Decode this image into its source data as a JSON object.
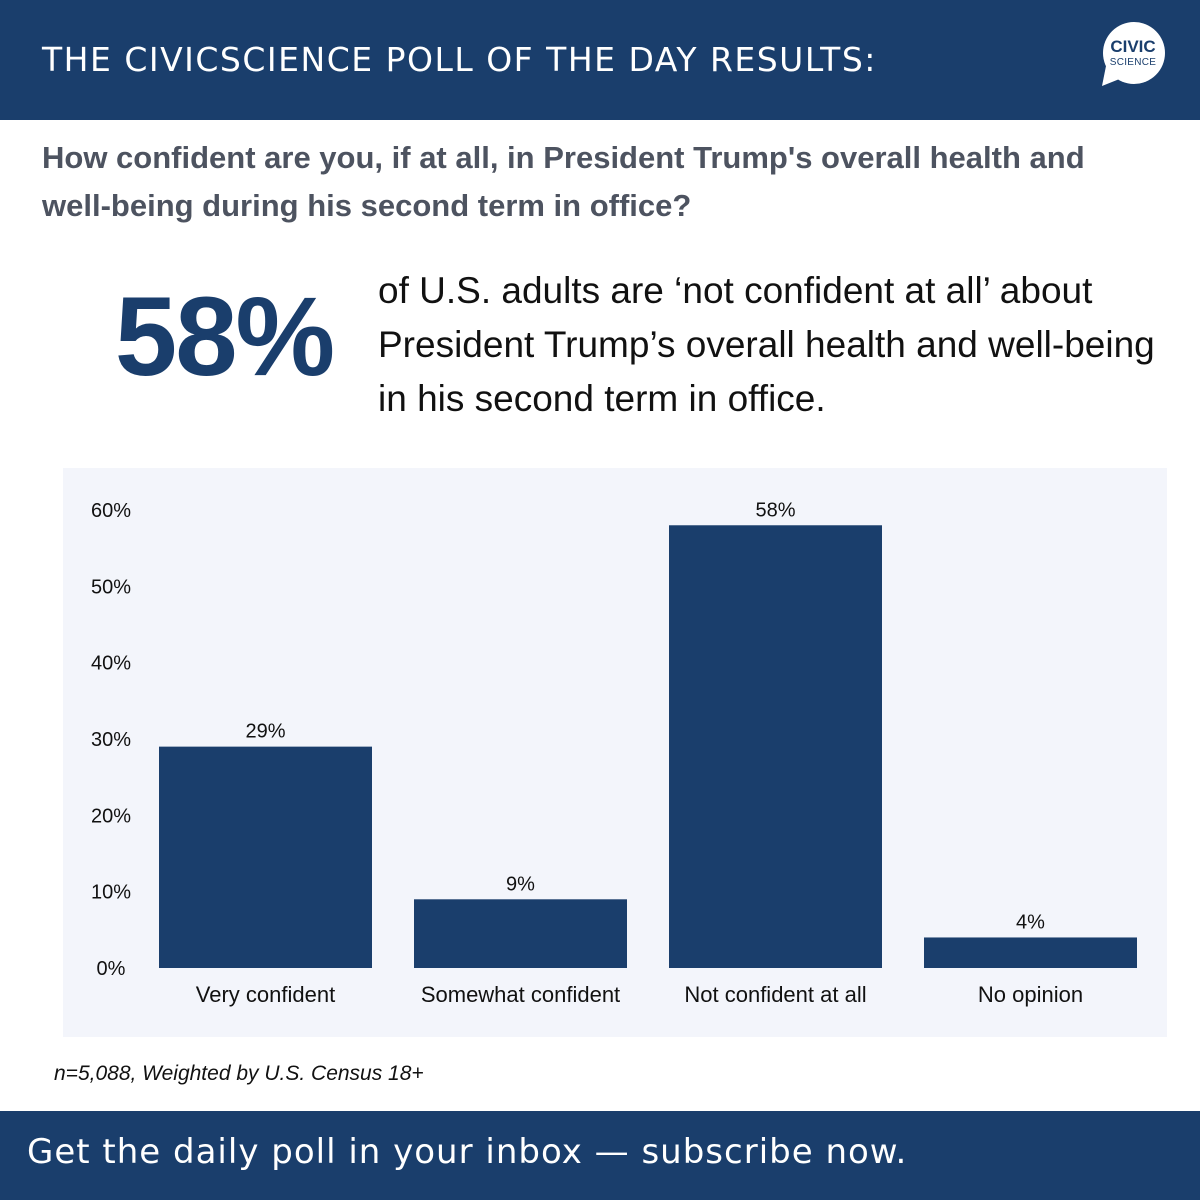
{
  "header": {
    "title": "THE CIVICSCIENCE POLL OF THE DAY RESULTS:",
    "logo_line1": "CIVIC",
    "logo_line2": "SCIENCE"
  },
  "question": "How confident are you, if at all, in President Trump's overall health and well-being during his second term in office?",
  "highlight": {
    "value": "58%",
    "description": "of U.S. adults are ‘not confident at all’ about President Trump’s overall health and well-being in his second term in office."
  },
  "chart_data": {
    "type": "bar",
    "categories": [
      "Very confident",
      "Somewhat confident",
      "Not confident at all",
      "No opinion"
    ],
    "values": [
      29,
      9,
      58,
      4
    ],
    "value_labels": [
      "29%",
      "9%",
      "58%",
      "4%"
    ],
    "yticks": [
      "0%",
      "10%",
      "20%",
      "30%",
      "40%",
      "50%",
      "60%"
    ],
    "ylim": [
      0,
      60
    ],
    "title": "",
    "xlabel": "",
    "ylabel": "",
    "grid": false,
    "bar_color": "#1a3e6c",
    "background_color": "#f3f5fb"
  },
  "footnote": "n=5,088, Weighted by U.S. Census 18+",
  "footer": {
    "cta": "Get the daily poll in your inbox — subscribe now."
  },
  "colors": {
    "brand_navy": "#1a3e6c",
    "question_gray": "#4d5360"
  }
}
